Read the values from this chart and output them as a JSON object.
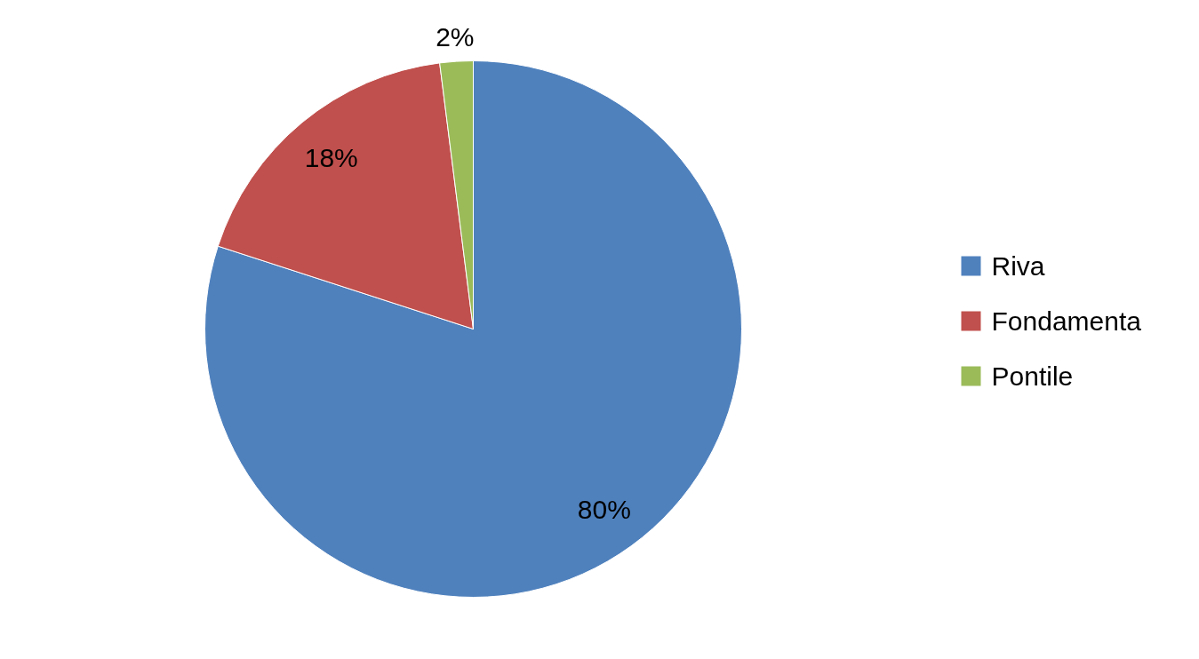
{
  "chart_data": {
    "type": "pie",
    "categories": [
      "Riva",
      "Fondamenta",
      "Pontile"
    ],
    "values": [
      80,
      18,
      2
    ],
    "colors": [
      "#4f81bd",
      "#c0504d",
      "#9bbb59"
    ],
    "value_labels": [
      "80%",
      "18%",
      "2%"
    ],
    "legend": "right"
  }
}
